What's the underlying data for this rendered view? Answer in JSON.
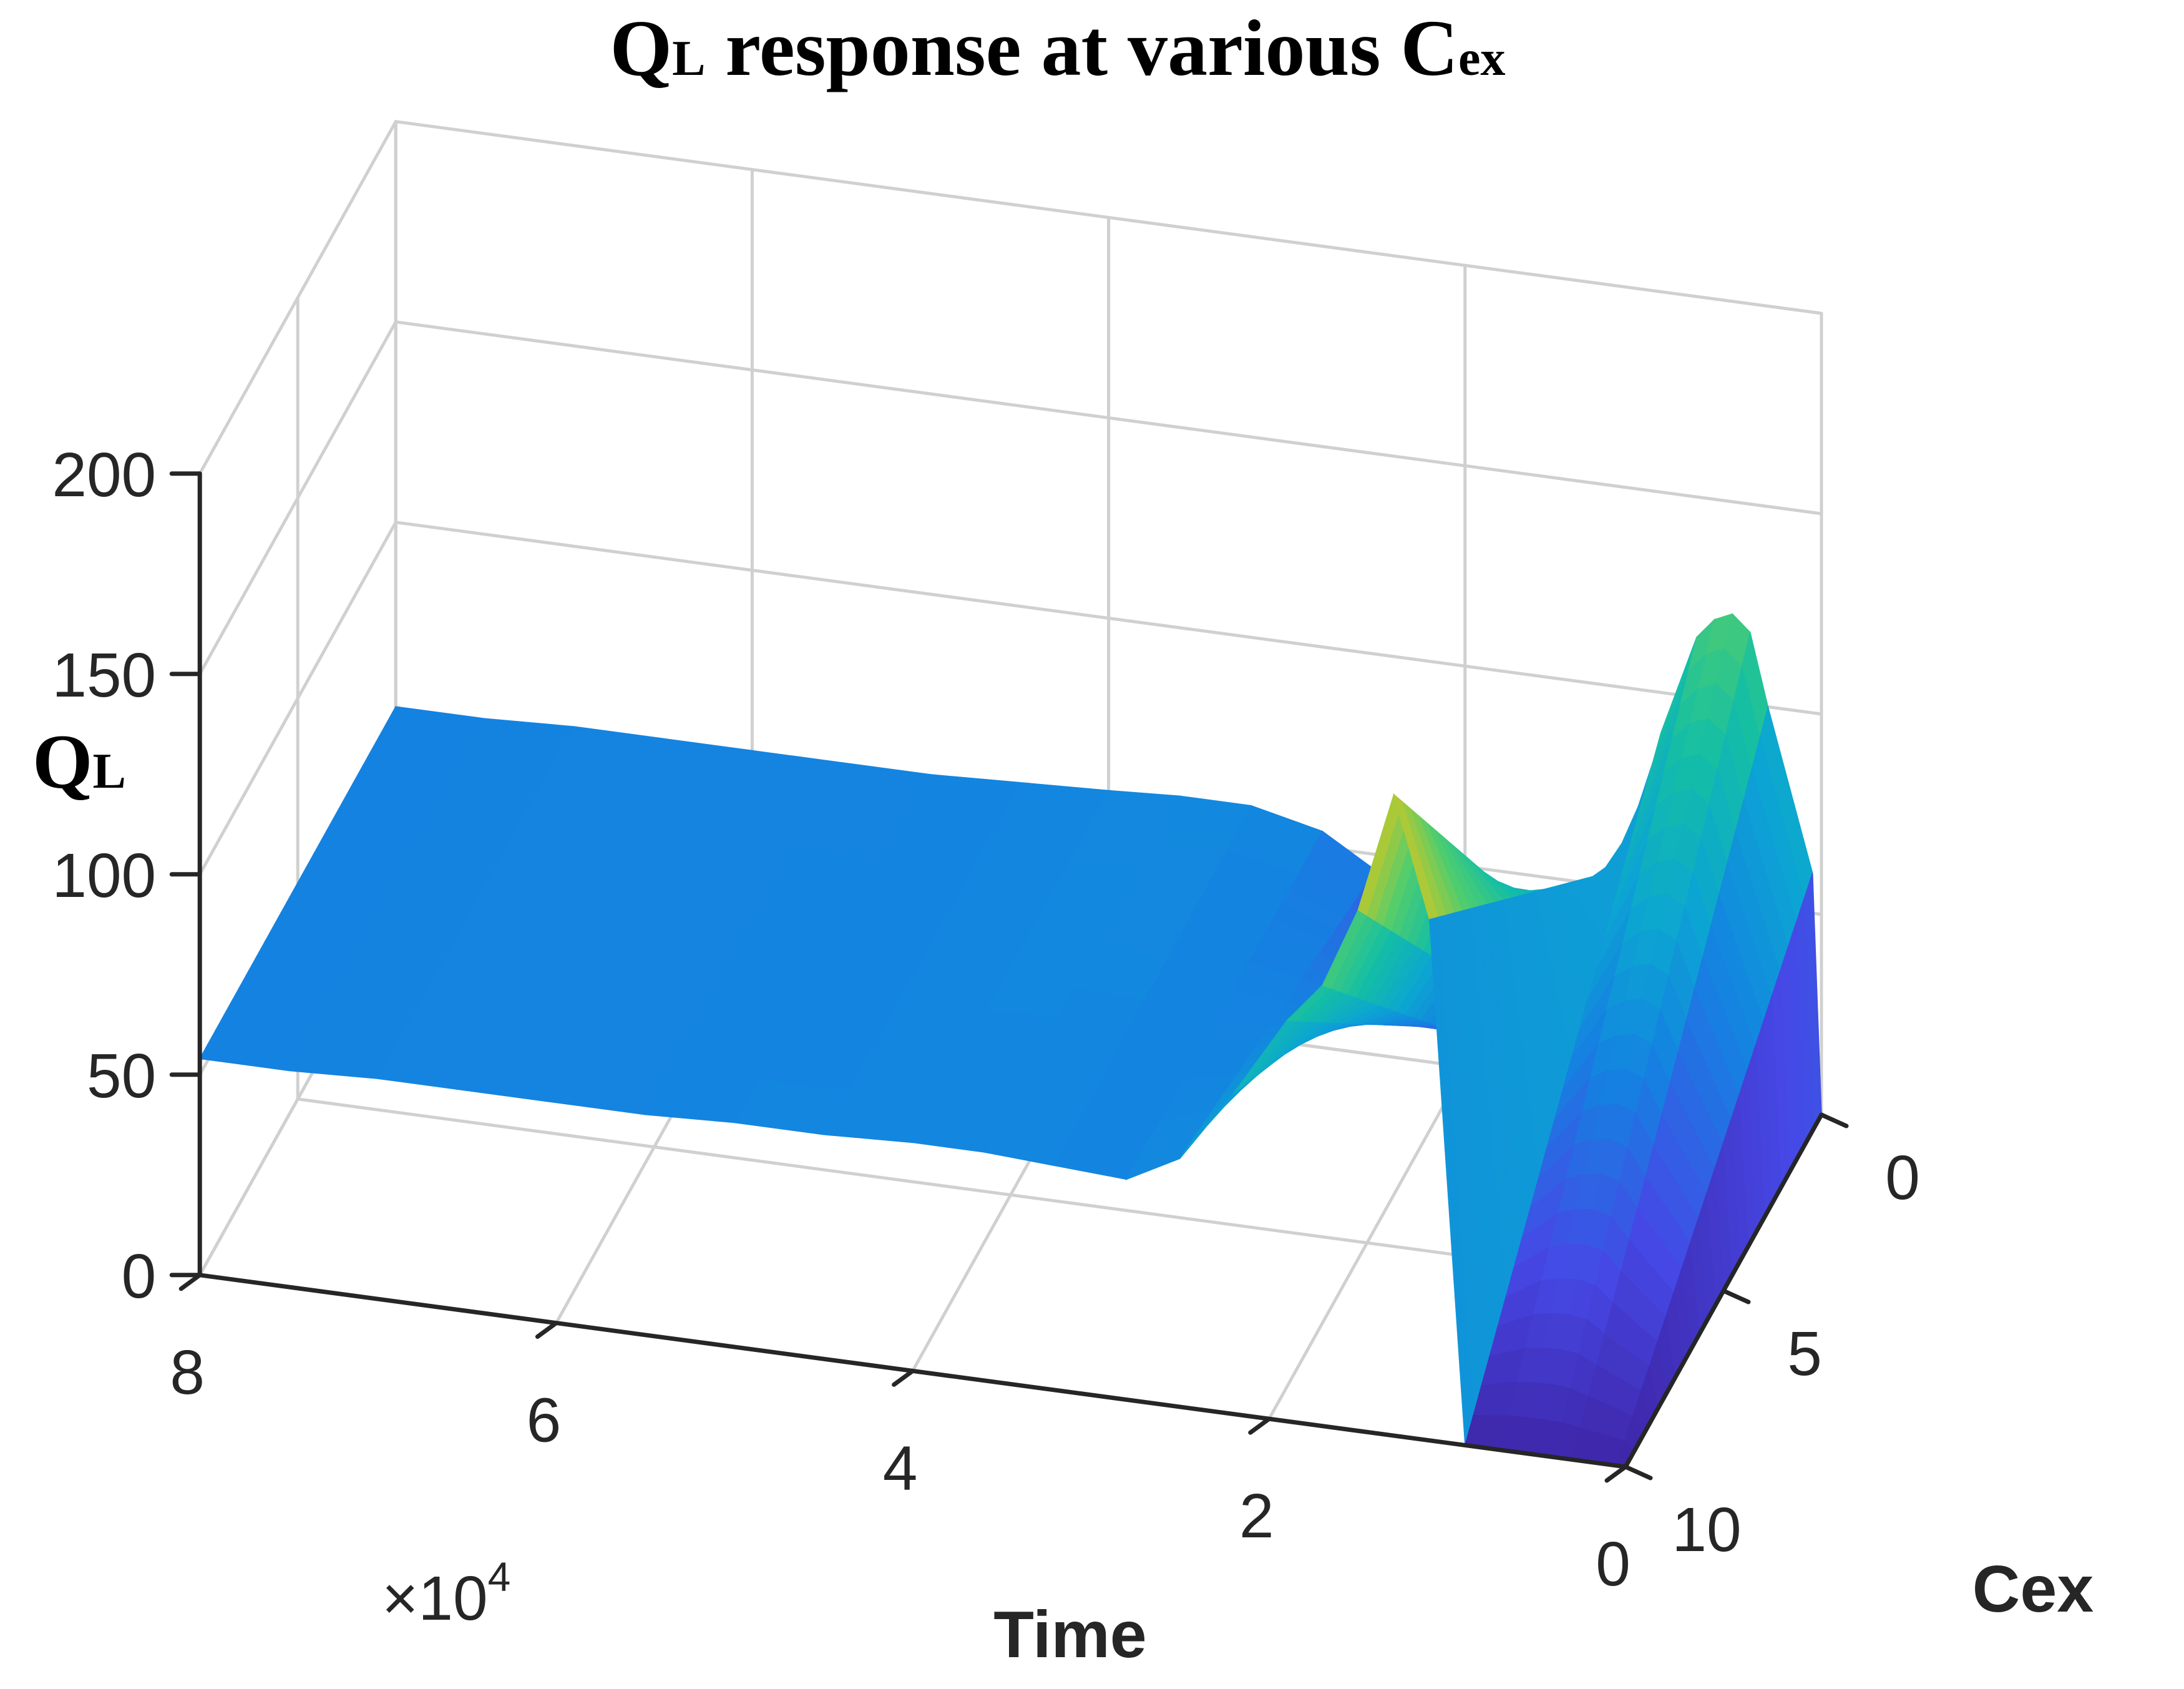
{
  "chart_data": {
    "type": "surface3d",
    "title": {
      "main": "Q",
      "main_sub": "L",
      "rest": " response at various C",
      "rest_sub": "ex"
    },
    "zlabel": {
      "main": "Q",
      "sub": "L"
    },
    "xlabel": "Time",
    "ylabel": "Cex",
    "x_exponent": {
      "base": "×10",
      "power": "4"
    },
    "xlim": [
      0,
      8
    ],
    "ylim": [
      0,
      10
    ],
    "zlim": [
      0,
      200
    ],
    "x_ticks": [
      "0",
      "2",
      "4",
      "6",
      "8"
    ],
    "y_ticks": [
      "0",
      "5",
      "10"
    ],
    "z_ticks": [
      "0",
      "50",
      "100",
      "150",
      "200"
    ],
    "grid": true,
    "colormap": "parula",
    "surface": {
      "x_time_1e4": [
        0,
        0.05,
        0.3,
        0.4,
        0.5,
        0.6,
        0.7,
        0.9,
        1.1,
        1.3,
        1.5,
        1.7,
        1.9,
        2.2,
        2.5,
        2.8,
        3.2,
        3.6,
        4.0,
        4.5,
        5.0,
        5.5,
        6.0,
        6.5,
        7.0,
        7.5,
        8.0
      ],
      "cex_0": [
        0,
        60,
        100,
        118,
        122,
        120,
        115,
        90,
        55,
        30,
        12,
        5,
        10,
        30,
        46,
        54,
        58,
        58,
        57,
        56,
        55,
        55,
        55,
        55,
        55,
        54,
        54
      ],
      "cex_10": [
        0,
        0,
        0,
        0,
        0,
        0,
        0,
        0,
        130,
        160,
        130,
        110,
        100,
        80,
        62,
        55,
        56,
        57,
        57,
        56,
        56,
        55,
        55,
        55,
        55,
        54,
        54
      ]
    }
  }
}
